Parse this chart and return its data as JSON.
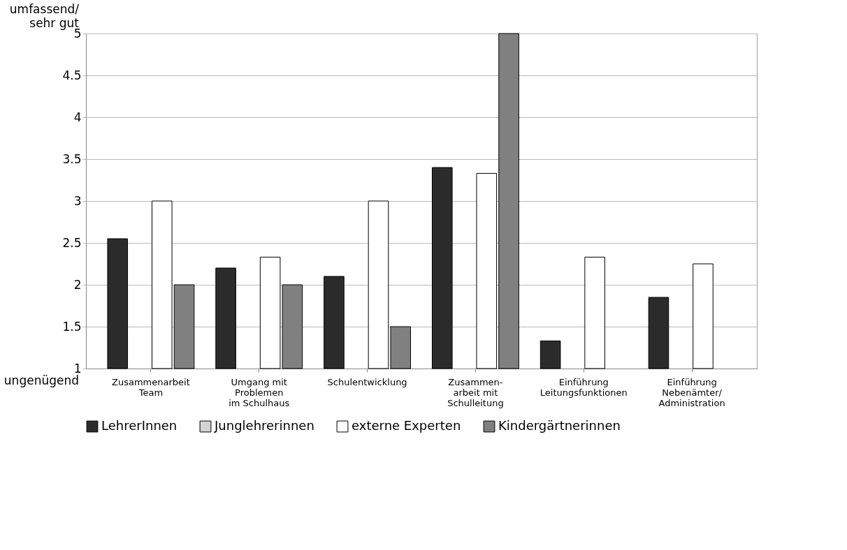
{
  "chart_data": {
    "type": "bar",
    "categories": [
      "Zusammenarbeit\nTeam",
      "Umgang mit\nProblemen\nim Schulhaus",
      "Schulentwicklung",
      "Zusammen-\narbeit mit\nSchulleitung",
      "Einführung\nLeitungsfunktionen",
      "Einführung\nNebenämter/\nAdministration"
    ],
    "series": [
      {
        "name": "LehrerInnen",
        "color": "#2b2b2b",
        "values": [
          2.55,
          2.2,
          2.1,
          3.4,
          1.33,
          1.85
        ]
      },
      {
        "name": "Junglehrerinnen",
        "color": "#d3d3d3",
        "values": [
          1,
          1,
          1,
          1,
          1,
          1
        ]
      },
      {
        "name": "externe Experten",
        "color": "#ffffff",
        "values": [
          3,
          2.33,
          3,
          3.33,
          2.33,
          2.25
        ]
      },
      {
        "name": "Kindergärtnerinnen",
        "color": "#808080",
        "values": [
          2,
          2,
          1.5,
          5,
          1,
          1
        ]
      }
    ],
    "ylim": [
      1,
      5
    ],
    "yticks": [
      1,
      1.5,
      2,
      2.5,
      3,
      3.5,
      4,
      4.5,
      5
    ],
    "grid": "y",
    "legend": "bottom",
    "annotations": [
      "umfassend/\nsehr gut",
      "ungenügend"
    ]
  }
}
